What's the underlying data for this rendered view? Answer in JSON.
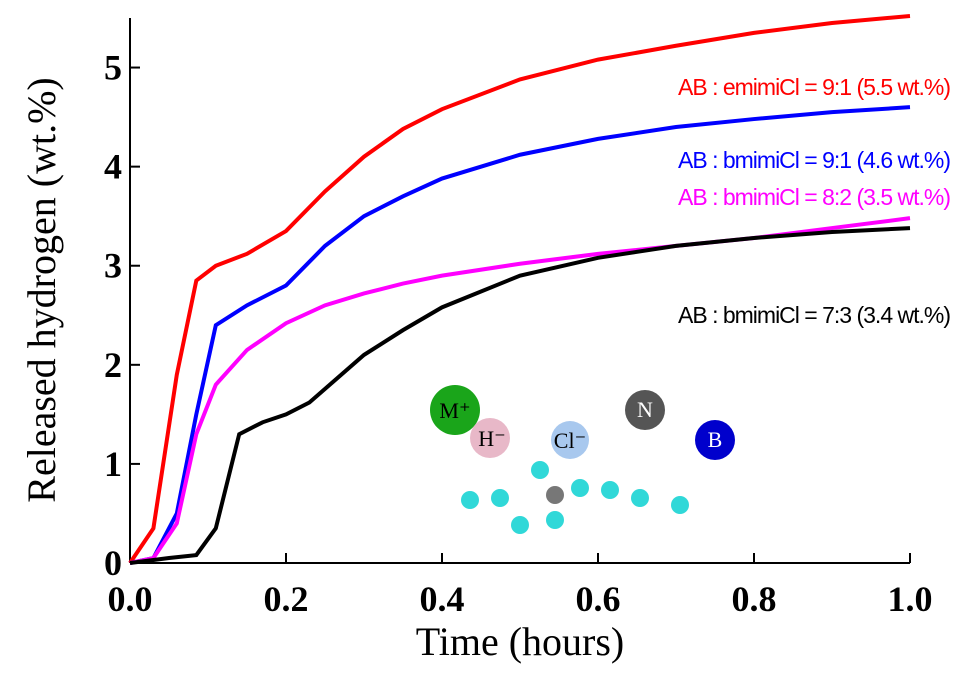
{
  "chart_data": {
    "type": "line",
    "x_label": "Time (hours)",
    "y_label": "Released hydrogen (wt.%)",
    "xlim": [
      0,
      1.0
    ],
    "ylim": [
      0,
      5.5
    ],
    "xticks": [
      {
        "value": 0,
        "label": "0.0"
      },
      {
        "value": 0.2,
        "label": "0.2"
      },
      {
        "value": 0.4,
        "label": "0.4"
      },
      {
        "value": 0.6,
        "label": "0.6"
      },
      {
        "value": 0.8,
        "label": "0.8"
      },
      {
        "value": 1.0,
        "label": "1.0"
      }
    ],
    "yticks": [
      0,
      1,
      2,
      3,
      4,
      5
    ],
    "series": [
      {
        "name": "AB : emimiCl = 9:1 (5.5 wt.%)",
        "color": "#ff0000",
        "x": [
          0,
          0.03,
          0.06,
          0.085,
          0.11,
          0.15,
          0.2,
          0.25,
          0.3,
          0.35,
          0.4,
          0.5,
          0.6,
          0.7,
          0.8,
          0.9,
          1.0
        ],
        "values": [
          0,
          0.35,
          1.9,
          2.85,
          3.0,
          3.12,
          3.35,
          3.75,
          4.1,
          4.38,
          4.58,
          4.88,
          5.08,
          5.22,
          5.35,
          5.45,
          5.52
        ]
      },
      {
        "name": "AB : bmimiCl = 9:1 (4.6 wt.%)",
        "color": "#0000ff",
        "x": [
          0,
          0.03,
          0.06,
          0.085,
          0.11,
          0.15,
          0.2,
          0.25,
          0.3,
          0.35,
          0.4,
          0.5,
          0.6,
          0.7,
          0.8,
          0.9,
          1.0
        ],
        "values": [
          0,
          0.05,
          0.5,
          1.5,
          2.4,
          2.6,
          2.8,
          3.2,
          3.5,
          3.7,
          3.88,
          4.12,
          4.28,
          4.4,
          4.48,
          4.55,
          4.6
        ]
      },
      {
        "name": "AB : bmimiCl = 8:2 (3.5 wt.%)",
        "color": "#ff00ff",
        "x": [
          0,
          0.03,
          0.06,
          0.085,
          0.11,
          0.15,
          0.2,
          0.25,
          0.3,
          0.35,
          0.4,
          0.5,
          0.6,
          0.7,
          0.8,
          0.9,
          1.0
        ],
        "values": [
          0,
          0.05,
          0.4,
          1.3,
          1.8,
          2.15,
          2.42,
          2.6,
          2.72,
          2.82,
          2.9,
          3.02,
          3.12,
          3.2,
          3.28,
          3.38,
          3.48
        ]
      },
      {
        "name": "AB : bmimiCl = 7:3 (3.4 wt.%)",
        "color": "#000000",
        "x": [
          0,
          0.05,
          0.085,
          0.11,
          0.14,
          0.17,
          0.2,
          0.23,
          0.3,
          0.35,
          0.4,
          0.5,
          0.6,
          0.7,
          0.8,
          0.9,
          1.0
        ],
        "values": [
          0,
          0.05,
          0.08,
          0.35,
          1.3,
          1.42,
          1.5,
          1.62,
          2.1,
          2.35,
          2.58,
          2.9,
          3.08,
          3.2,
          3.28,
          3.34,
          3.38
        ]
      }
    ],
    "illustration_labels": [
      "M⁺",
      "H⁻",
      "Cl⁻",
      "N",
      "B"
    ]
  }
}
